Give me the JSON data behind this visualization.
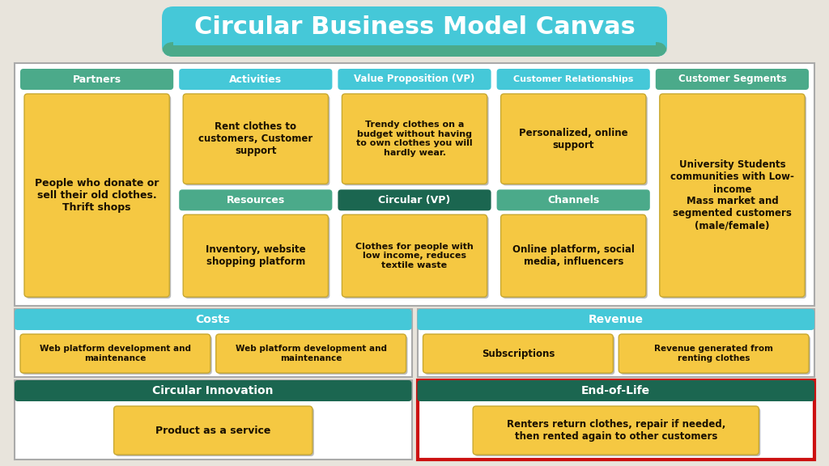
{
  "title": "Circular Business Model Canvas",
  "title_bg": "#45C8D8",
  "title_stripe": "#4BAA8A",
  "bg_color": "#E8E4DC",
  "header_blue": "#45C8D8",
  "header_teal": "#4BAA8A",
  "header_dark_green": "#1B6650",
  "cell_yellow": "#F5C842",
  "cell_shadow": "#C8B830",
  "cell_text": "#1A1000",
  "white": "#FFFFFF",
  "border_gray": "#AAAAAA",
  "red_border": "#CC1010",
  "partners_header": "Partners",
  "partners_header_color": "#4BAA8A",
  "partners_content": "People who donate or\nsell their old clothes.\nThrift shops",
  "activities_header": "Activities",
  "activities_header_color": "#45C8D8",
  "activities_content": "Rent clothes to\ncustomers, Customer\nsupport",
  "resources_header": "Resources",
  "resources_header_color": "#4BAA8A",
  "resources_content": "Inventory, website\nshopping platform",
  "vp_header": "Value Proposition (VP)",
  "vp_header_color": "#45C8D8",
  "vp_content": "Trendy clothes on a\nbudget without having\nto own clothes you will\nhardly wear.",
  "cvp_header": "Circular (VP)",
  "cvp_header_color": "#1B6650",
  "cvp_content": "Clothes for people with\nlow income, reduces\ntextile waste",
  "cr_header": "Customer Relationships",
  "cr_header_color": "#45C8D8",
  "cr_content": "Personalized, online\nsupport",
  "channels_header": "Channels",
  "channels_header_color": "#4BAA8A",
  "channels_content": "Online platform, social\nmedia, influencers",
  "cs_header": "Customer Segments",
  "cs_header_color": "#4BAA8A",
  "cs_content": "University Students\ncommunities with Low-\nincome\nMass market and\nsegmented customers\n(male/female)",
  "costs_header": "Costs",
  "costs_header_color": "#45C8D8",
  "costs_c1": "Web platform development and\nmaintenance",
  "costs_c2": "Web platform development and\nmaintenance",
  "rev_header": "Revenue",
  "rev_header_color": "#45C8D8",
  "rev_c1": "Subscriptions",
  "rev_c2": "Revenue generated from\nrenting clothes",
  "ci_header": "Circular Innovation",
  "ci_header_color": "#1B6650",
  "ci_content": "Product as a service",
  "eol_header": "End-of-Life",
  "eol_header_color": "#1B6650",
  "eol_content": "Renters return clothes, repair if needed,\nthen rented again to other customers"
}
